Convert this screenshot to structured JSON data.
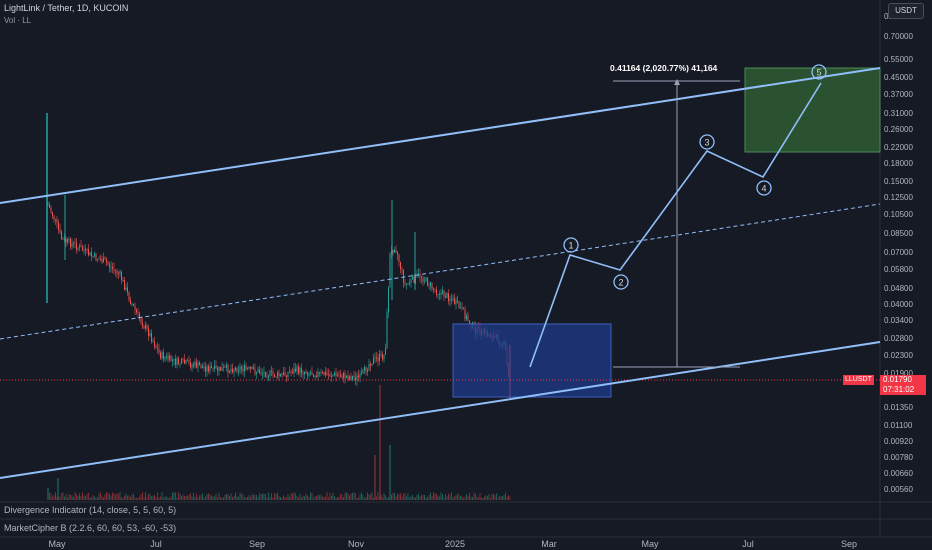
{
  "header": {
    "symbol_line": "LightLink / Tether, 1D, KUCOIN",
    "volume_label": "Vol · LL",
    "currency_button": "USDT"
  },
  "price_axis": {
    "ticks": [
      "0.85000",
      "0.70000",
      "0.55000",
      "0.45000",
      "0.37000",
      "0.31000",
      "0.26000",
      "0.22000",
      "0.18000",
      "0.15000",
      "0.12500",
      "0.10500",
      "0.08500",
      "0.07000",
      "0.05800",
      "0.04800",
      "0.04000",
      "0.03400",
      "0.02800",
      "0.02300",
      "0.01900",
      "0.01350",
      "0.01100",
      "0.00920",
      "0.00780",
      "0.00660",
      "0.00560"
    ]
  },
  "time_axis": {
    "labels": [
      "May",
      "Jul",
      "Sep",
      "Nov",
      "2025",
      "Mar",
      "May",
      "Jul",
      "Sep"
    ]
  },
  "last_price": {
    "symbol_tag": "LLUSDT",
    "value": "0.01790",
    "countdown": "07:31:02",
    "color": "#f23645"
  },
  "measure_label": "0.41164 (2,020.77%) 41,164",
  "wave_labels": [
    "1",
    "2",
    "3",
    "4",
    "5"
  ],
  "indicators": {
    "divergence": "Divergence Indicator (14, close, 5, 5, 60, 5)",
    "marketcipher": "MarketCipher B (2.2.6, 60, 60, 53, -60, -53)"
  },
  "colors": {
    "background": "#161a25",
    "channel": "#90bff9",
    "up": "#26a69a",
    "down": "#ef5350",
    "target_box": "#2e5c33",
    "entry_box": "#1e3a8a"
  }
}
